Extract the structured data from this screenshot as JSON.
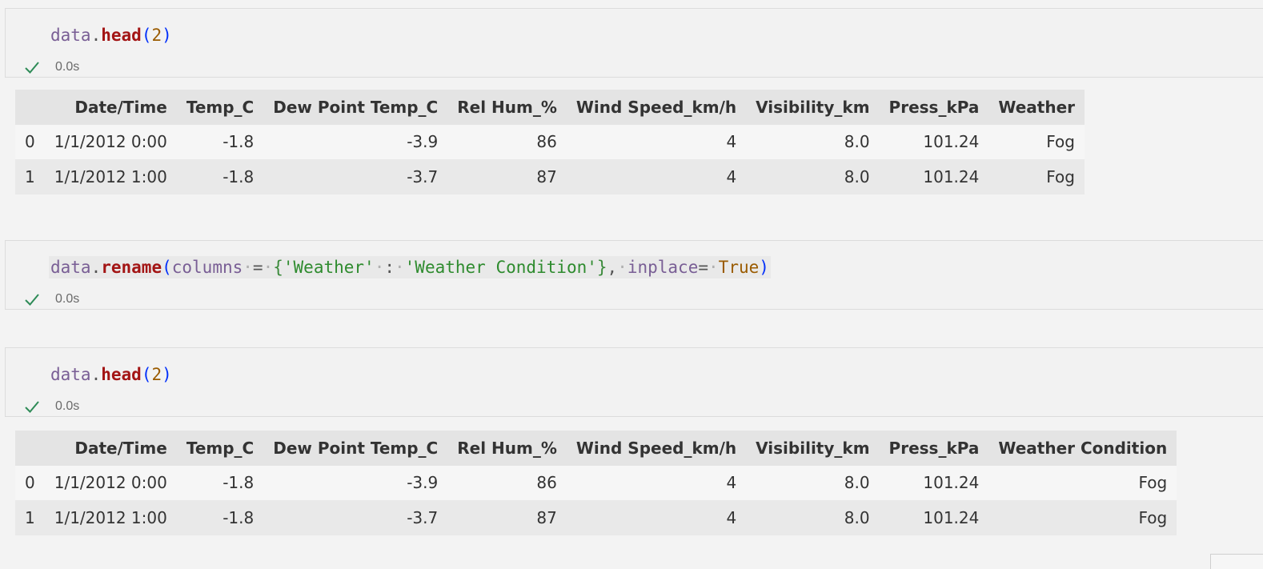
{
  "cells": [
    {
      "code": {
        "var": "data",
        "method": "head",
        "arg": "2"
      },
      "status_time": "0.0s"
    },
    {
      "code": {
        "var": "data",
        "method": "rename",
        "param1": "columns",
        "key": "'Weather'",
        "value": "'Weather Condition'",
        "param2": "inplace",
        "bool": "True"
      },
      "status_time": "0.0s"
    },
    {
      "code": {
        "var": "data",
        "method": "head",
        "arg": "2"
      },
      "status_time": "0.0s"
    }
  ],
  "table1": {
    "columns": [
      "Date/Time",
      "Temp_C",
      "Dew Point Temp_C",
      "Rel Hum_%",
      "Wind Speed_km/h",
      "Visibility_km",
      "Press_kPa",
      "Weather"
    ],
    "rows": [
      {
        "index": "0",
        "values": [
          "1/1/2012 0:00",
          "-1.8",
          "-3.9",
          "86",
          "4",
          "8.0",
          "101.24",
          "Fog"
        ]
      },
      {
        "index": "1",
        "values": [
          "1/1/2012 1:00",
          "-1.8",
          "-3.7",
          "87",
          "4",
          "8.0",
          "101.24",
          "Fog"
        ]
      }
    ]
  },
  "table2": {
    "columns": [
      "Date/Time",
      "Temp_C",
      "Dew Point Temp_C",
      "Rel Hum_%",
      "Wind Speed_km/h",
      "Visibility_km",
      "Press_kPa",
      "Weather Condition"
    ],
    "rows": [
      {
        "index": "0",
        "values": [
          "1/1/2012 0:00",
          "-1.8",
          "-3.9",
          "86",
          "4",
          "8.0",
          "101.24",
          "Fog"
        ]
      },
      {
        "index": "1",
        "values": [
          "1/1/2012 1:00",
          "-1.8",
          "-3.7",
          "87",
          "4",
          "8.0",
          "101.24",
          "Fog"
        ]
      }
    ]
  },
  "icons": {
    "status": "check-icon"
  },
  "colors": {
    "success": "#2e8b57",
    "function": "#a31515",
    "string": "#2e8b2e",
    "variable": "#795e95"
  }
}
